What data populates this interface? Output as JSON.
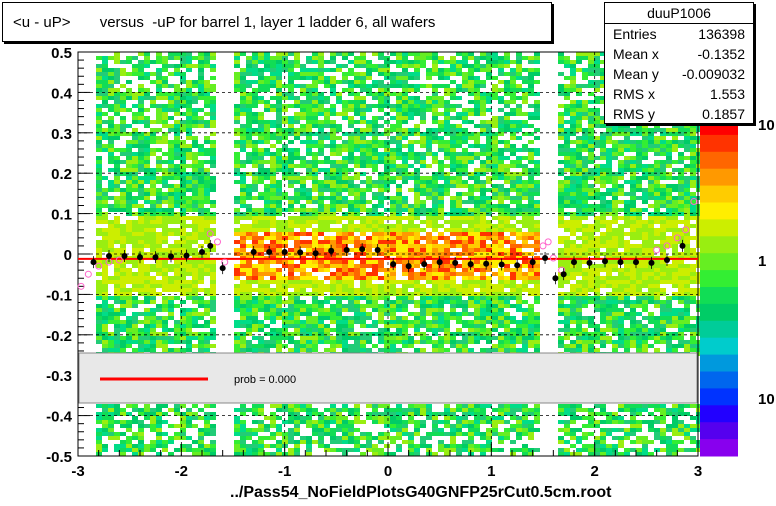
{
  "title": "<u - uP>       versus  -uP for barrel 1, layer 1 ladder 6, all wafers",
  "stats": {
    "name": "duuP1006",
    "rows": [
      {
        "key": "Entries",
        "value": "136398"
      },
      {
        "key": "Mean x",
        "value": "-0.1352"
      },
      {
        "key": "Mean y",
        "value": "-0.009032"
      },
      {
        "key": "RMS x",
        "value": "1.553"
      },
      {
        "key": "RMS y",
        "value": "0.1857"
      }
    ]
  },
  "legend": {
    "fit_label": "prob = 0.000"
  },
  "footer": "../Pass54_NoFieldPlotsG40GNFP25rCut0.5cm.root",
  "colors": {
    "fit_line": "#ff0000",
    "profile_points": "#000000",
    "open_points": "#ff66cc"
  },
  "chart_data": {
    "type": "heatmap",
    "xlim": [
      -3,
      3
    ],
    "ylim": [
      -0.5,
      0.5
    ],
    "x_ticks": [
      "-3",
      "-2",
      "-1",
      "0",
      "1",
      "2",
      "3"
    ],
    "y_ticks": [
      "-0.5",
      "-0.4",
      "-0.3",
      "-0.2",
      "-0.1",
      "0",
      "0.1",
      "0.2",
      "0.3",
      "0.4",
      "0.5"
    ],
    "z_scale": "log",
    "z_ticks": [
      "10",
      "1",
      "10"
    ],
    "grid": true,
    "profile": {
      "x": [
        -2.85,
        -2.7,
        -2.55,
        -2.4,
        -2.25,
        -2.1,
        -1.95,
        -1.8,
        -1.72,
        -1.6,
        -1.3,
        -1.15,
        -1.0,
        -0.85,
        -0.7,
        -0.55,
        -0.4,
        -0.25,
        -0.1,
        0.05,
        0.2,
        0.35,
        0.5,
        0.65,
        0.8,
        0.95,
        1.1,
        1.25,
        1.4,
        1.52,
        1.62,
        1.7,
        1.8,
        1.95,
        2.1,
        2.25,
        2.4,
        2.55,
        2.7,
        2.85
      ],
      "y": [
        -0.02,
        -0.005,
        -0.005,
        -0.008,
        -0.008,
        -0.006,
        -0.004,
        0.005,
        0.02,
        -0.035,
        0.005,
        0.005,
        0.005,
        0.004,
        0.002,
        0.008,
        0.01,
        0.012,
        0.01,
        -0.025,
        -0.03,
        -0.025,
        -0.02,
        -0.022,
        -0.025,
        -0.024,
        -0.026,
        -0.028,
        -0.02,
        -0.01,
        -0.06,
        -0.05,
        -0.02,
        -0.022,
        -0.018,
        -0.02,
        -0.02,
        -0.022,
        -0.015,
        0.02
      ]
    },
    "open_points": {
      "x": [
        -2.97,
        -2.9,
        -2.8,
        -2.7,
        -2.6,
        -1.72,
        -1.65,
        -1.58,
        1.5,
        1.55,
        1.6,
        1.68,
        2.6,
        2.7,
        2.8,
        2.88,
        2.96
      ],
      "y": [
        -0.08,
        -0.05,
        -0.03,
        -0.02,
        -0.015,
        0.05,
        0.03,
        -0.02,
        0.02,
        0.03,
        -0.01,
        -0.04,
        0.01,
        0.02,
        0.04,
        0.06,
        0.13
      ]
    },
    "fit": {
      "x": [
        -3,
        3
      ],
      "y": [
        -0.012,
        -0.012
      ]
    }
  }
}
